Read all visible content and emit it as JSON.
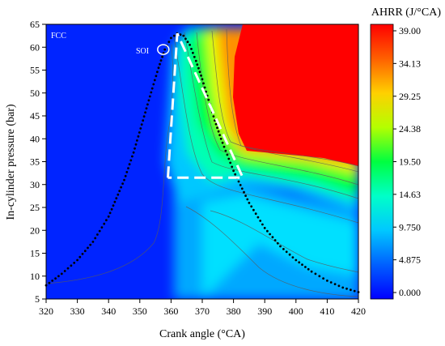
{
  "chart_data": {
    "type": "heatmap",
    "xlabel": "Crank angle (°CA)",
    "ylabel": "In-cylinder pressure (bar)",
    "xlim": [
      320,
      420
    ],
    "ylim": [
      5,
      65
    ],
    "x_ticks": [
      320,
      330,
      340,
      350,
      360,
      370,
      380,
      390,
      400,
      410,
      420
    ],
    "y_ticks": [
      5,
      10,
      15,
      20,
      25,
      30,
      35,
      40,
      45,
      50,
      55,
      60,
      65
    ],
    "colorbar": {
      "title": "AHRR (J/°CA)",
      "levels": [
        "0.000",
        "4.875",
        "9.750",
        "14.63",
        "19.50",
        "24.38",
        "29.25",
        "34.13",
        "39.00"
      ],
      "range": [
        0,
        39
      ]
    },
    "annotations": {
      "corner_label": "FCC",
      "soi_label": "SOI"
    },
    "soi_marker": {
      "x": 357.5,
      "y": 59.5
    },
    "ahrr_peak_region": {
      "description_values": "approximate AHRR field: low (~0) before ~352 °CA, rising sharply near TDC, saturated above ~385 °CA at high pressure",
      "high_zone_x": [
        385,
        420
      ],
      "high_zone_y": [
        37,
        65
      ]
    },
    "pressure_trace": {
      "x": [
        320,
        325,
        330,
        335,
        340,
        345,
        348,
        351,
        354,
        356,
        358,
        360,
        362,
        364,
        366,
        368,
        370,
        372,
        374,
        376,
        378,
        380,
        385,
        390,
        395,
        400,
        405,
        410,
        415,
        420
      ],
      "y": [
        8.0,
        10.5,
        13.5,
        17.5,
        23.0,
        31.0,
        37.0,
        44.0,
        51.0,
        55.5,
        59.5,
        62.0,
        63.0,
        62.5,
        60.5,
        57.0,
        53.0,
        48.5,
        44.0,
        40.0,
        36.5,
        33.0,
        26.0,
        20.5,
        16.5,
        13.5,
        11.0,
        9.0,
        7.5,
        6.5
      ]
    },
    "dashed_box_path": {
      "x": [
        359,
        362,
        383,
        359,
        359
      ],
      "y": [
        31.5,
        63,
        31.5,
        31.5,
        31.5
      ]
    }
  }
}
